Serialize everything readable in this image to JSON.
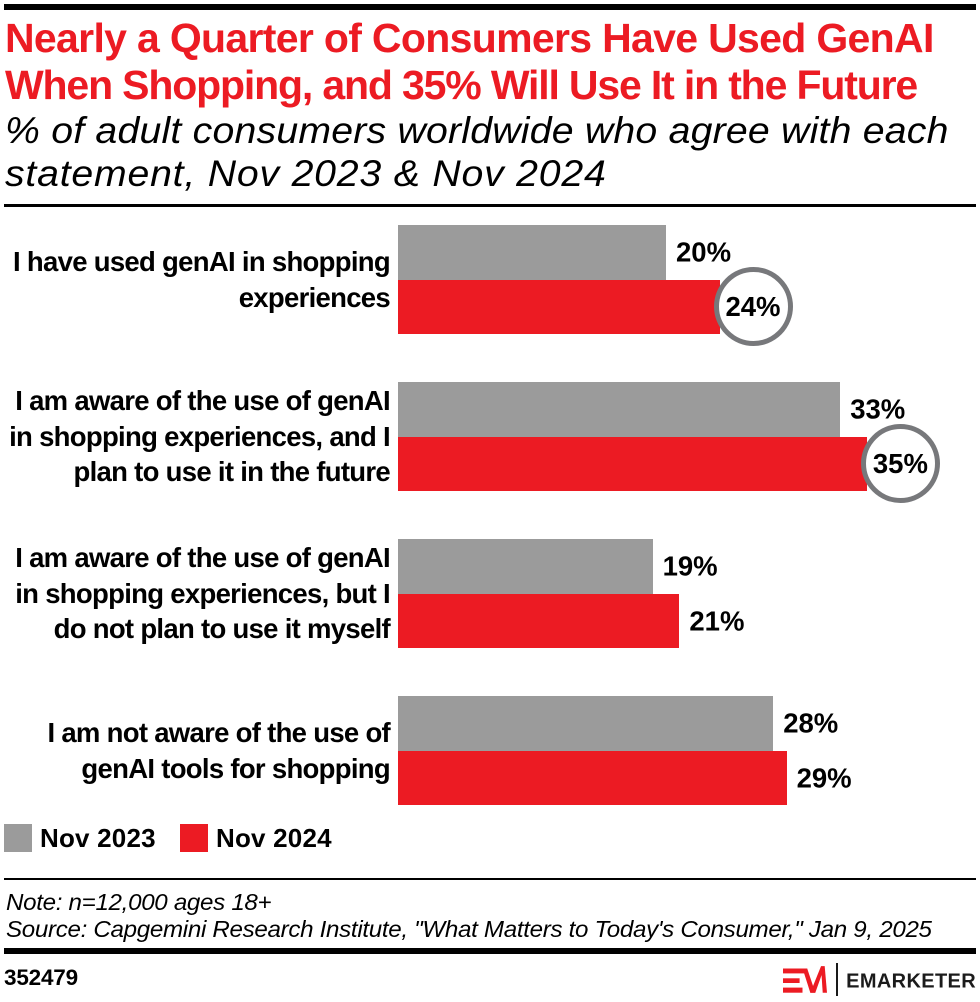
{
  "colors": {
    "red": "#EC1B23",
    "gray": "#9B9B9B",
    "circle_ring": "#77787B",
    "ink": "#000000"
  },
  "header": {
    "title_lines": [
      "Nearly a Quarter of Consumers Have Used GenAI",
      "When Shopping, and 35% Will Use It in the Future"
    ],
    "subtitle_lines": [
      "% of adult consumers worldwide who agree with each",
      "statement, Nov 2023 & Nov 2024"
    ]
  },
  "chart_data": {
    "type": "bar",
    "orientation": "horizontal",
    "title": "Nearly a Quarter of Consumers Have Used GenAI When Shopping, and 35% Will Use It in the Future",
    "subtitle": "% of adult consumers worldwide who agree with each statement, Nov 2023 & Nov 2024",
    "value_suffix": "%",
    "xlim": [
      0,
      35
    ],
    "categories": [
      "I have used genAI in shopping experiences",
      "I am aware of the use of genAI in shopping experiences, and I plan to use it in the future",
      "I am aware of the use of genAI in shopping experiences, but I do not plan to use it myself",
      "I am not aware of the use of genAI tools for shopping"
    ],
    "category_label_lines": [
      [
        "I have used genAI in shopping",
        "experiences"
      ],
      [
        "I am aware of the use of genAI",
        "in shopping experiences, and I",
        "plan to use it in the future"
      ],
      [
        "I am aware of the use of genAI",
        "in shopping experiences, but I",
        "do not plan to use it myself"
      ],
      [
        "I am not aware of the use of",
        "genAI tools for shopping"
      ]
    ],
    "series": [
      {
        "name": "Nov 2023",
        "color": "#9B9B9B",
        "values": [
          20,
          33,
          19,
          28
        ]
      },
      {
        "name": "Nov 2024",
        "color": "#EC1B23",
        "values": [
          24,
          35,
          21,
          29
        ]
      }
    ],
    "circled_values": [
      {
        "category_index": 0,
        "series_index": 1,
        "value": 24
      },
      {
        "category_index": 1,
        "series_index": 1,
        "value": 35
      }
    ],
    "legend_position": "bottom-left",
    "grid": false
  },
  "legend": [
    {
      "label": "Nov 2023",
      "color": "#9B9B9B"
    },
    {
      "label": "Nov 2024",
      "color": "#EC1B23"
    }
  ],
  "notes": {
    "note": "Note: n=12,000 ages 18+",
    "source": "Source: Capgemini Research Institute, \"What Matters to Today's Consumer,\" Jan 9, 2025"
  },
  "footer": {
    "chart_id": "352479",
    "brand": "EMARKETER",
    "logo_monogram": "EM"
  }
}
